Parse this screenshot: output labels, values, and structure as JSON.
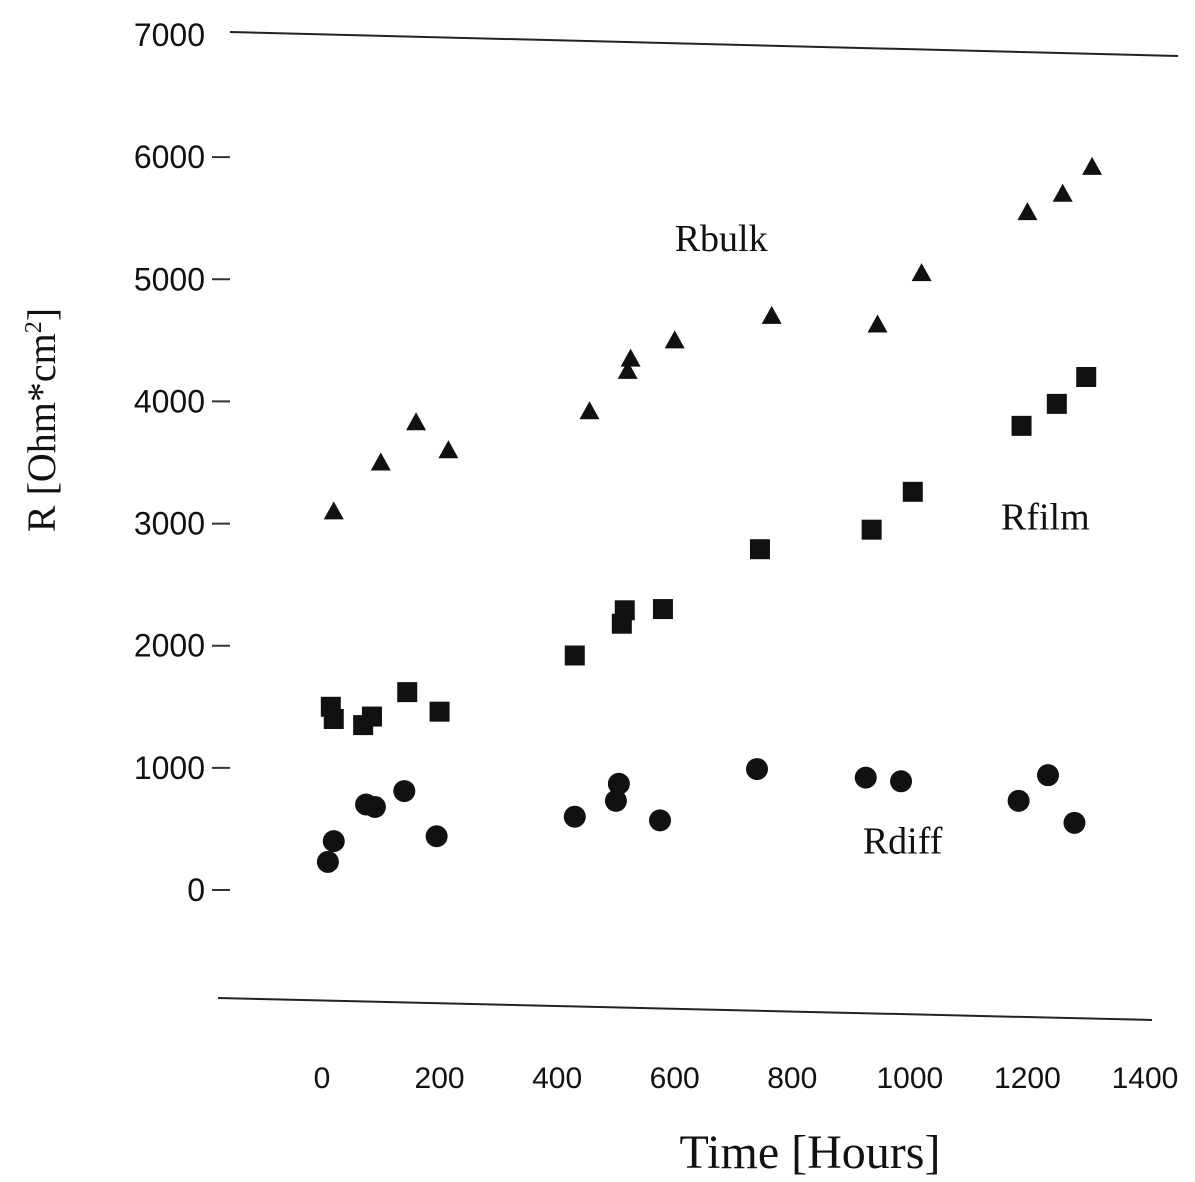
{
  "chart_data": {
    "type": "scatter",
    "title": "",
    "xlabel": "Time [Hours]",
    "ylabel": "R [Ohm*cm²]",
    "ylabel_parts": {
      "main": "R [Ohm*cm",
      "sup": "2",
      "end": "]"
    },
    "xlim": [
      0,
      1400
    ],
    "ylim": [
      0,
      7000
    ],
    "x_ticks": [
      0,
      200,
      400,
      600,
      800,
      1000,
      1200,
      1400
    ],
    "y_ticks": [
      0,
      1000,
      2000,
      3000,
      4000,
      5000,
      6000,
      7000
    ],
    "grid": false,
    "legend": "none",
    "series": [
      {
        "name": "Rbulk",
        "marker": "triangle",
        "points": [
          [
            20,
            3100
          ],
          [
            100,
            3500
          ],
          [
            160,
            3830
          ],
          [
            215,
            3600
          ],
          [
            455,
            3920
          ],
          [
            520,
            4250
          ],
          [
            525,
            4350
          ],
          [
            600,
            4500
          ],
          [
            765,
            4700
          ],
          [
            945,
            4630
          ],
          [
            1020,
            5050
          ],
          [
            1200,
            5550
          ],
          [
            1260,
            5700
          ],
          [
            1310,
            5920
          ]
        ]
      },
      {
        "name": "Rfilm",
        "marker": "square",
        "points": [
          [
            15,
            1500
          ],
          [
            20,
            1400
          ],
          [
            70,
            1350
          ],
          [
            85,
            1420
          ],
          [
            145,
            1620
          ],
          [
            200,
            1460
          ],
          [
            430,
            1920
          ],
          [
            510,
            2180
          ],
          [
            515,
            2290
          ],
          [
            580,
            2300
          ],
          [
            745,
            2790
          ],
          [
            935,
            2950
          ],
          [
            1005,
            3260
          ],
          [
            1190,
            3800
          ],
          [
            1250,
            3980
          ],
          [
            1300,
            4200
          ]
        ]
      },
      {
        "name": "Rdiff",
        "marker": "circle",
        "points": [
          [
            10,
            230
          ],
          [
            20,
            400
          ],
          [
            75,
            700
          ],
          [
            90,
            680
          ],
          [
            140,
            810
          ],
          [
            195,
            440
          ],
          [
            430,
            600
          ],
          [
            500,
            730
          ],
          [
            505,
            870
          ],
          [
            575,
            570
          ],
          [
            740,
            990
          ],
          [
            925,
            920
          ],
          [
            985,
            890
          ],
          [
            1185,
            730
          ],
          [
            1235,
            940
          ],
          [
            1280,
            550
          ]
        ]
      }
    ]
  }
}
